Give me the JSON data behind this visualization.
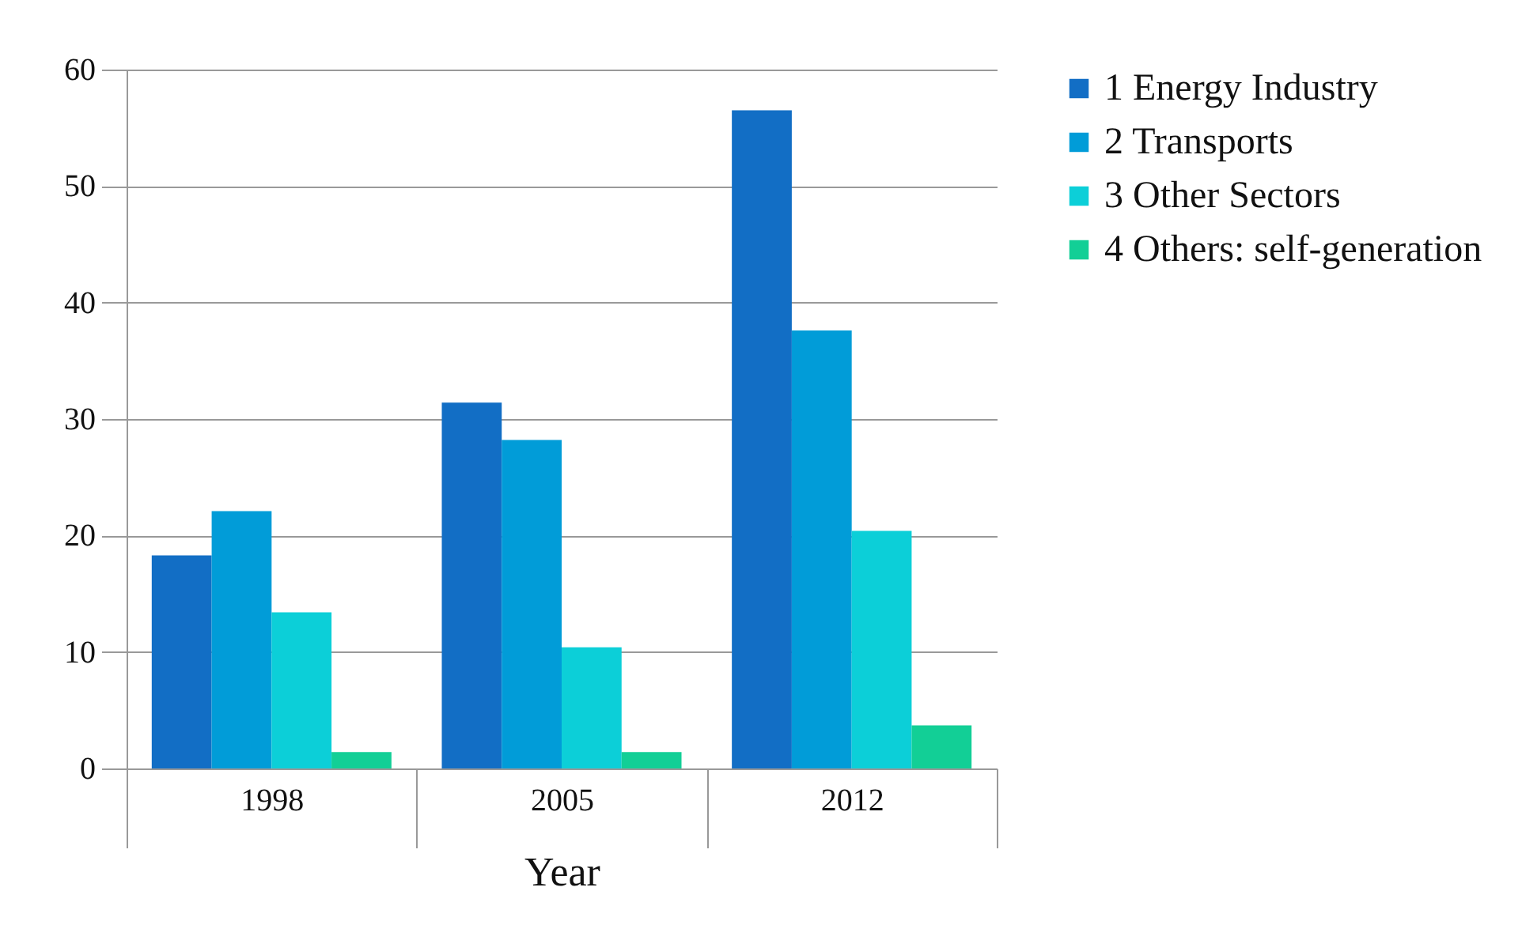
{
  "chart_data": {
    "type": "bar",
    "xlabel": "Year",
    "categories": [
      "1998",
      "2005",
      "2012"
    ],
    "series": [
      {
        "name": "1 Energy Industry",
        "color": "#126ec5",
        "values": [
          18.3,
          31.4,
          56.5
        ]
      },
      {
        "name": "2 Transports",
        "color": "#019cd8",
        "values": [
          22.1,
          28.2,
          37.6
        ]
      },
      {
        "name": "3 Other Sectors",
        "color": "#0ccfd8",
        "values": [
          13.4,
          10.4,
          20.4
        ]
      },
      {
        "name": "4 Others: self-generation",
        "color": "#12cf96",
        "values": [
          1.4,
          1.4,
          3.7
        ]
      }
    ],
    "ylim": [
      0,
      60
    ],
    "yticks": [
      0,
      10,
      20,
      30,
      40,
      50,
      60
    ],
    "grid": "y",
    "legend": "right"
  }
}
